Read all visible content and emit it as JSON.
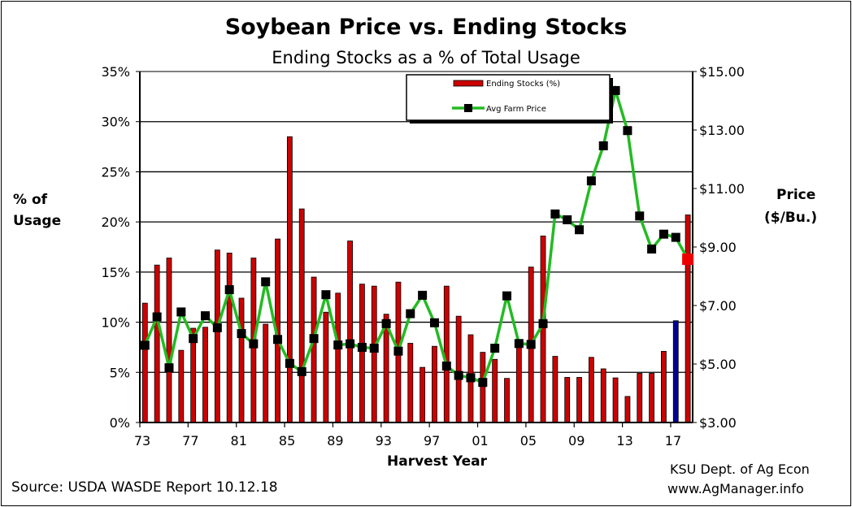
{
  "chart_data": {
    "type": "bar+line",
    "title": "Soybean Price vs. Ending Stocks",
    "subtitle": "Ending Stocks as a % of Total Usage",
    "xlabel": "Harvest Year",
    "ylabel_left": [
      "% of",
      "Usage"
    ],
    "ylabel_right": [
      "Price",
      "($/Bu.)"
    ],
    "source": "Source:  USDA WASDE Report 10.12.18",
    "credit": [
      "KSU Dept. of Ag Econ",
      "www.AgManager.info"
    ],
    "ylim_left": [
      0,
      35
    ],
    "ylim_right": [
      3,
      15
    ],
    "left_ticks": [
      "0%",
      "5%",
      "10%",
      "15%",
      "20%",
      "25%",
      "30%",
      "35%"
    ],
    "right_ticks": [
      "$3.00",
      "$5.00",
      "$7.00",
      "$9.00",
      "$11.00",
      "$13.00",
      "$15.00"
    ],
    "x_tick_labels": [
      "73",
      "77",
      "81",
      "85",
      "89",
      "93",
      "97",
      "01",
      "05",
      "09",
      "13",
      "17"
    ],
    "grid": "horizontal",
    "legend_placement": "top-right",
    "years": [
      1973,
      1974,
      1975,
      1976,
      1977,
      1978,
      1979,
      1980,
      1981,
      1982,
      1983,
      1984,
      1985,
      1986,
      1987,
      1988,
      1989,
      1990,
      1991,
      1992,
      1993,
      1994,
      1995,
      1996,
      1997,
      1998,
      1999,
      2000,
      2001,
      2002,
      2003,
      2004,
      2005,
      2006,
      2007,
      2008,
      2009,
      2010,
      2011,
      2012,
      2013,
      2014,
      2015,
      2016,
      2017,
      2018
    ],
    "series": [
      {
        "name": "Ending Stocks (%)",
        "type": "bar",
        "color": "#cc0000",
        "highlight_color": "#000099",
        "highlight_year": 2017,
        "values": [
          11.9,
          15.7,
          16.4,
          7.2,
          9.4,
          9.5,
          17.2,
          16.9,
          12.4,
          16.4,
          9.8,
          18.3,
          28.5,
          21.3,
          14.5,
          11.0,
          12.9,
          18.1,
          13.8,
          13.6,
          10.8,
          14.0,
          7.9,
          5.5,
          7.6,
          13.6,
          10.6,
          8.75,
          7.0,
          6.3,
          4.4,
          8.0,
          15.5,
          18.6,
          6.6,
          4.5,
          4.5,
          6.5,
          5.35,
          4.45,
          2.6,
          4.9,
          4.9,
          7.1,
          10.15,
          20.7
        ]
      },
      {
        "name": "Avg Farm Price",
        "type": "line",
        "color": "#22bb22",
        "marker_color": "#000000",
        "last_marker_color": "#ee0000",
        "values": [
          5.64,
          6.61,
          4.87,
          6.78,
          5.87,
          6.65,
          6.24,
          7.54,
          6.04,
          5.69,
          7.81,
          5.84,
          5.02,
          4.74,
          5.87,
          7.37,
          5.65,
          5.69,
          5.57,
          5.54,
          6.38,
          5.44,
          6.72,
          7.35,
          6.41,
          4.93,
          4.61,
          4.53,
          4.37,
          5.54,
          7.33,
          5.7,
          5.67,
          6.38,
          10.13,
          9.93,
          9.59,
          11.26,
          12.46,
          14.35,
          12.98,
          10.06,
          8.93,
          9.44,
          9.33,
          8.58
        ]
      }
    ]
  }
}
